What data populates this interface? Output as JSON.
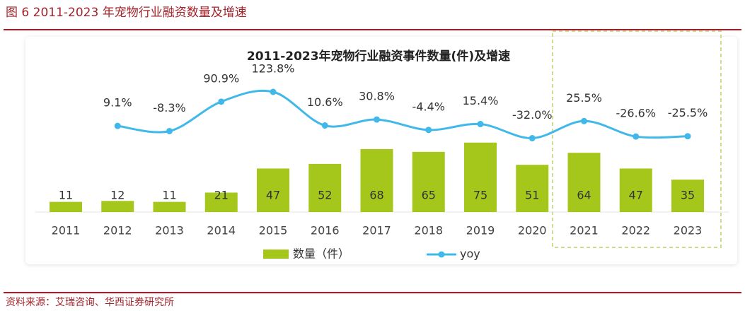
{
  "header": {
    "title": "图 6 2011-2023 年宠物行业融资数量及增速"
  },
  "chart_data": {
    "type": "bar-line",
    "title": "2011-2023年宠物行业融资事件数量(件)及增速",
    "categories": [
      "2011",
      "2012",
      "2013",
      "2014",
      "2015",
      "2016",
      "2017",
      "2018",
      "2019",
      "2020",
      "2021",
      "2022",
      "2023"
    ],
    "series": [
      {
        "name": "数量（件）",
        "color": "#a5c71c",
        "values": [
          11,
          12,
          11,
          21,
          47,
          52,
          68,
          65,
          75,
          51,
          64,
          47,
          35
        ]
      },
      {
        "name": "yoy",
        "color": "#41b8ea",
        "axis": "y2",
        "values": [
          null,
          9.1,
          -8.3,
          90.9,
          123.8,
          10.6,
          30.8,
          -4.4,
          15.4,
          -32.0,
          25.5,
          -26.6,
          -25.5
        ],
        "value_labels": [
          null,
          "9.1%",
          "-8.3%",
          "90.9%",
          "123.8%",
          "10.6%",
          "30.8%",
          "-4.4%",
          "15.4%",
          "-32.0%",
          "25.5%",
          "-26.6%",
          "-25.5%"
        ]
      }
    ],
    "ylim": [
      0,
      100
    ],
    "y2lim": [
      -50,
      150
    ],
    "legend": "bottom"
  },
  "footer": {
    "source": "资料来源：艾瑞咨询、华西证券研究所"
  }
}
